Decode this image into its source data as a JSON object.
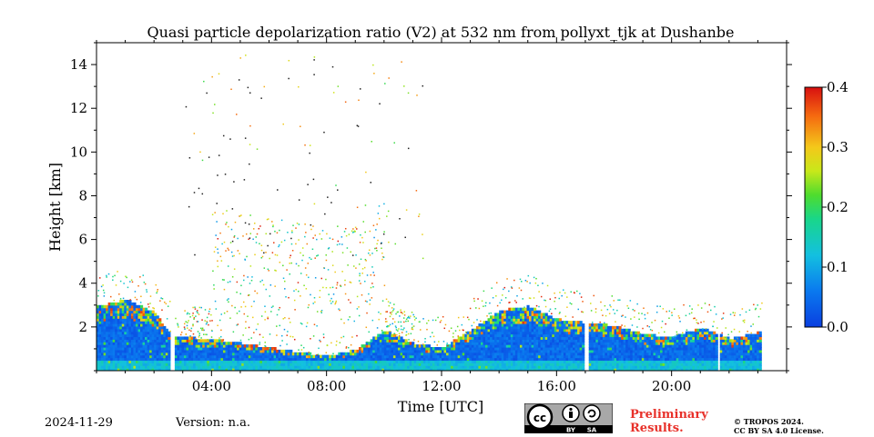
{
  "chart_data": {
    "type": "heatmap",
    "title": "Quasi particle depolarization ratio (V2) at 532 nm from pollyxt_tjk at Dushanbe",
    "xlabel": "Time [UTC]",
    "ylabel": "Height [km]",
    "xlim": [
      0,
      24
    ],
    "ylim": [
      0,
      15
    ],
    "x_ticks": [
      {
        "value": 4,
        "label": "04:00"
      },
      {
        "value": 8,
        "label": "08:00"
      },
      {
        "value": 12,
        "label": "12:00"
      },
      {
        "value": 16,
        "label": "16:00"
      },
      {
        "value": 20,
        "label": "20:00"
      }
    ],
    "y_ticks": [
      {
        "value": 2,
        "label": "2"
      },
      {
        "value": 4,
        "label": "4"
      },
      {
        "value": 6,
        "label": "6"
      },
      {
        "value": 8,
        "label": "8"
      },
      {
        "value": 10,
        "label": "10"
      },
      {
        "value": 12,
        "label": "12"
      },
      {
        "value": 14,
        "label": "14"
      }
    ],
    "colorbar": {
      "range": [
        0.0,
        0.4
      ],
      "ticks": [
        "0.0",
        "0.1",
        "0.2",
        "0.3",
        "0.4"
      ],
      "colormap": "jet"
    },
    "data_gaps_hours": [
      [
        2.55,
        2.65
      ],
      [
        16.95,
        17.1
      ],
      [
        21.55,
        21.65
      ]
    ],
    "aerosol_layer_top_km": [
      [
        0.0,
        2.9
      ],
      [
        1.0,
        3.2
      ],
      [
        2.0,
        2.6
      ],
      [
        2.6,
        1.5
      ],
      [
        4.0,
        1.4
      ],
      [
        6.0,
        1.0
      ],
      [
        8.0,
        0.6
      ],
      [
        9.0,
        0.9
      ],
      [
        10.0,
        1.8
      ],
      [
        11.0,
        1.2
      ],
      [
        12.0,
        1.0
      ],
      [
        13.0,
        1.8
      ],
      [
        14.0,
        2.7
      ],
      [
        15.0,
        2.9
      ],
      [
        16.0,
        2.3
      ],
      [
        17.2,
        2.1
      ],
      [
        18.0,
        2.0
      ],
      [
        19.0,
        1.6
      ],
      [
        20.0,
        1.5
      ],
      [
        21.0,
        1.9
      ],
      [
        22.0,
        1.4
      ],
      [
        23.0,
        1.7
      ]
    ]
  },
  "footer": {
    "date": "2024-11-29",
    "version": "Version: n.a.",
    "preliminary": [
      "Preliminary",
      "Results."
    ],
    "copyright": [
      "© TROPOS 2024.",
      "CC BY SA 4.0 License."
    ],
    "license_badge": [
      "BY",
      "SA"
    ]
  },
  "colors": {
    "preliminary": "#e8312a",
    "badge": "#9e9e9e"
  }
}
